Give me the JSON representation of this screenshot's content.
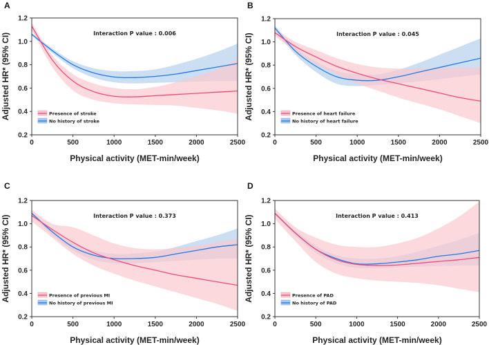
{
  "colors": {
    "group1": "#f0487a",
    "group1_band": "#f9c9cf",
    "group2": "#1f78e6",
    "group2_band": "#a9c8ea"
  },
  "chart_data": [
    {
      "type": "line",
      "panel": "A",
      "annotation": "Interaction P value : 0.006",
      "xlabel": "Physical activity (MET-min/week)",
      "ylabel": "Adjusted HR* (95% CI)",
      "xlim": [
        0,
        2500
      ],
      "ylim": [
        0.2,
        1.2
      ],
      "xticks": [
        "0",
        "500",
        "1000",
        "1500",
        "2000",
        "2500"
      ],
      "yticks": [
        "0.2",
        "0.4",
        "0.6",
        "0.8",
        "1.0",
        "1.2"
      ],
      "legend_position": "bottom-left",
      "x": [
        0,
        250,
        500,
        750,
        1000,
        1250,
        1500,
        1750,
        2000,
        2250,
        2500
      ],
      "series": [
        {
          "name": "Presence of stroke",
          "y": [
            1.13,
            0.84,
            0.66,
            0.57,
            0.53,
            0.525,
            0.535,
            0.545,
            0.555,
            0.565,
            0.575
          ],
          "lo": [
            1.1,
            0.78,
            0.58,
            0.5,
            0.47,
            0.46,
            0.455,
            0.45,
            0.43,
            0.41,
            0.38
          ],
          "hi": [
            1.16,
            0.88,
            0.72,
            0.64,
            0.6,
            0.59,
            0.61,
            0.65,
            0.7,
            0.76,
            0.85
          ]
        },
        {
          "name": "No history of stroke",
          "y": [
            1.06,
            0.92,
            0.8,
            0.73,
            0.695,
            0.69,
            0.7,
            0.72,
            0.75,
            0.78,
            0.81
          ],
          "lo": [
            1.05,
            0.9,
            0.77,
            0.69,
            0.65,
            0.64,
            0.645,
            0.65,
            0.655,
            0.66,
            0.66
          ],
          "hi": [
            1.07,
            0.94,
            0.83,
            0.77,
            0.745,
            0.745,
            0.76,
            0.8,
            0.85,
            0.91,
            0.98
          ]
        }
      ]
    },
    {
      "type": "line",
      "panel": "B",
      "annotation": "Interaction P value : 0.045",
      "xlabel": "Physical activity (MET-min/week)",
      "ylabel": "Adjusted HR* (95% CI)",
      "xlim": [
        0,
        2500
      ],
      "ylim": [
        0.2,
        1.2
      ],
      "xticks": [
        "0",
        "500",
        "1000",
        "1500",
        "2000",
        "2500"
      ],
      "yticks": [
        "0.2",
        "0.4",
        "0.6",
        "0.8",
        "1.0",
        "1.2"
      ],
      "legend_position": "bottom-left",
      "x": [
        0,
        250,
        500,
        750,
        1000,
        1250,
        1500,
        1750,
        2000,
        2250,
        2500
      ],
      "series": [
        {
          "name": "Presence of heart failure",
          "y": [
            1.08,
            0.96,
            0.87,
            0.79,
            0.73,
            0.68,
            0.64,
            0.6,
            0.56,
            0.52,
            0.49
          ],
          "lo": [
            1.05,
            0.92,
            0.81,
            0.72,
            0.64,
            0.58,
            0.52,
            0.47,
            0.42,
            0.36,
            0.3
          ],
          "hi": [
            1.11,
            1.0,
            0.93,
            0.86,
            0.81,
            0.78,
            0.77,
            0.77,
            0.78,
            0.78,
            0.78
          ]
        },
        {
          "name": "No history of heart failure",
          "y": [
            1.12,
            0.92,
            0.79,
            0.7,
            0.67,
            0.67,
            0.7,
            0.74,
            0.78,
            0.82,
            0.86
          ],
          "lo": [
            1.1,
            0.89,
            0.74,
            0.64,
            0.62,
            0.63,
            0.645,
            0.66,
            0.68,
            0.7,
            0.72
          ],
          "hi": [
            1.14,
            0.95,
            0.83,
            0.75,
            0.72,
            0.72,
            0.76,
            0.82,
            0.89,
            0.96,
            1.03
          ]
        }
      ]
    },
    {
      "type": "line",
      "panel": "C",
      "annotation": "Interaction P value : 0.373",
      "xlabel": "Physical activity (MET-min/week)",
      "ylabel": "Adjusted HR* (95% CI)",
      "xlim": [
        0,
        2500
      ],
      "ylim": [
        0.2,
        1.2
      ],
      "xticks": [
        "0",
        "500",
        "1000",
        "1500",
        "2000",
        "2500"
      ],
      "yticks": [
        "0.2",
        "0.4",
        "0.6",
        "0.8",
        "1.0",
        "1.2"
      ],
      "legend_position": "bottom-left",
      "x": [
        0,
        250,
        500,
        750,
        1000,
        1250,
        1500,
        1750,
        2000,
        2250,
        2500
      ],
      "series": [
        {
          "name": "Presence of previous MI",
          "y": [
            1.07,
            0.95,
            0.84,
            0.75,
            0.69,
            0.64,
            0.6,
            0.56,
            0.53,
            0.5,
            0.47
          ],
          "lo": [
            1.02,
            0.88,
            0.74,
            0.64,
            0.57,
            0.51,
            0.46,
            0.41,
            0.36,
            0.31,
            0.25
          ],
          "hi": [
            1.12,
            1.0,
            0.97,
            0.9,
            0.83,
            0.79,
            0.78,
            0.79,
            0.81,
            0.84,
            0.87
          ]
        },
        {
          "name": "No history of previous MI",
          "y": [
            1.09,
            0.93,
            0.8,
            0.73,
            0.7,
            0.7,
            0.71,
            0.74,
            0.77,
            0.8,
            0.82
          ],
          "lo": [
            1.08,
            0.9,
            0.77,
            0.69,
            0.66,
            0.66,
            0.67,
            0.68,
            0.69,
            0.7,
            0.7
          ],
          "hi": [
            1.1,
            0.95,
            0.83,
            0.77,
            0.74,
            0.745,
            0.76,
            0.8,
            0.85,
            0.9,
            0.96
          ]
        }
      ]
    },
    {
      "type": "line",
      "panel": "D",
      "annotation": "Interaction P value : 0.413",
      "xlabel": "Physical activity (MET-min/week)",
      "ylabel": "Adjusted HR* (95% CI)",
      "xlim": [
        0,
        2500
      ],
      "ylim": [
        0.2,
        1.2
      ],
      "xticks": [
        "0",
        "500",
        "1000",
        "1500",
        "2000",
        "2500"
      ],
      "yticks": [
        "0.2",
        "0.4",
        "0.6",
        "0.8",
        "1.0",
        "1.2"
      ],
      "legend_position": "bottom-left",
      "x": [
        0,
        250,
        500,
        750,
        1000,
        1250,
        1500,
        1750,
        2000,
        2250,
        2500
      ],
      "series": [
        {
          "name": "Presence of PAD",
          "y": [
            1.09,
            0.92,
            0.78,
            0.69,
            0.65,
            0.64,
            0.645,
            0.66,
            0.675,
            0.69,
            0.71
          ],
          "lo": [
            1.04,
            0.85,
            0.67,
            0.57,
            0.53,
            0.51,
            0.5,
            0.49,
            0.47,
            0.44,
            0.41
          ],
          "hi": [
            1.13,
            0.97,
            0.88,
            0.82,
            0.8,
            0.8,
            0.83,
            0.88,
            0.96,
            1.06,
            1.19
          ]
        },
        {
          "name": "No history of PAD",
          "y": [
            1.09,
            0.92,
            0.78,
            0.7,
            0.655,
            0.655,
            0.67,
            0.69,
            0.72,
            0.74,
            0.77
          ],
          "lo": [
            1.08,
            0.9,
            0.75,
            0.66,
            0.62,
            0.62,
            0.625,
            0.63,
            0.635,
            0.64,
            0.64
          ],
          "hi": [
            1.1,
            0.94,
            0.81,
            0.73,
            0.7,
            0.7,
            0.72,
            0.76,
            0.81,
            0.86,
            0.92
          ]
        }
      ]
    }
  ]
}
